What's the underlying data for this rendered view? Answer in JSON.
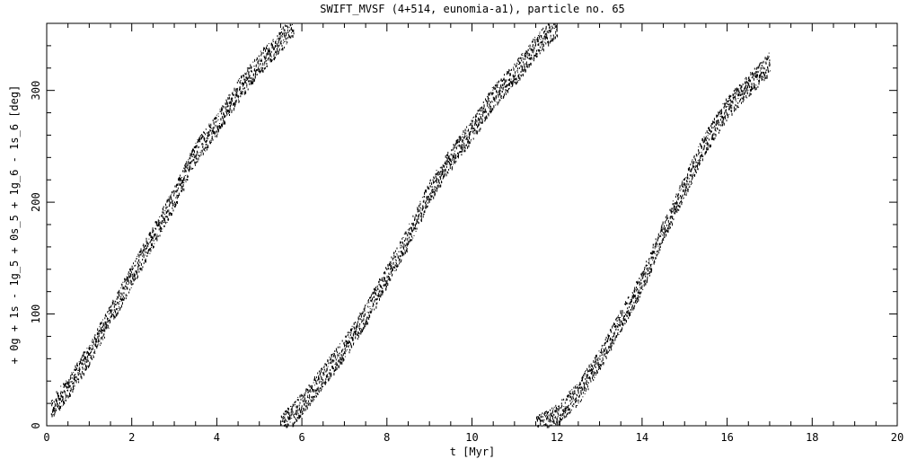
{
  "chart_data": {
    "type": "scatter",
    "title": "SWIFT_MVSF (4+514, eunomia-a1), particle no. 65",
    "xlabel": "t [Myr]",
    "ylabel": "+ 0g + 1s - 1g_5 + 0s_5 + 1g_6 - 1s_6 [deg]",
    "xlim": [
      0,
      20
    ],
    "ylim": [
      0,
      360
    ],
    "x_ticks": [
      "0",
      "2",
      "4",
      "6",
      "8",
      "10",
      "12",
      "14",
      "16",
      "18",
      "20"
    ],
    "y_ticks": [
      "0",
      "100",
      "200",
      "300"
    ],
    "grid": false,
    "marker_color": "#000000",
    "series": [
      {
        "x": [
          0.1,
          0.5,
          1.0,
          1.5,
          2.0,
          2.5,
          3.0,
          3.5,
          4.0,
          4.5,
          5.0,
          5.5,
          5.8
        ],
        "y": [
          15,
          35,
          65,
          100,
          135,
          170,
          205,
          245,
          270,
          300,
          325,
          345,
          360
        ],
        "scatter_halfwidth": 10
      },
      {
        "x": [
          5.5,
          6.0,
          6.5,
          7.0,
          7.5,
          8.0,
          8.5,
          9.0,
          9.5,
          10.0,
          10.5,
          11.0,
          11.5,
          12.0
        ],
        "y": [
          0,
          20,
          45,
          70,
          100,
          135,
          170,
          210,
          240,
          265,
          295,
          315,
          340,
          360
        ],
        "scatter_halfwidth": 10
      },
      {
        "x": [
          11.5,
          12.0,
          12.5,
          13.0,
          13.5,
          14.0,
          14.5,
          15.0,
          15.5,
          16.0,
          16.5,
          17.0
        ],
        "y": [
          0,
          10,
          30,
          60,
          95,
          130,
          175,
          215,
          255,
          285,
          305,
          325
        ],
        "scatter_halfwidth": 10
      }
    ]
  }
}
